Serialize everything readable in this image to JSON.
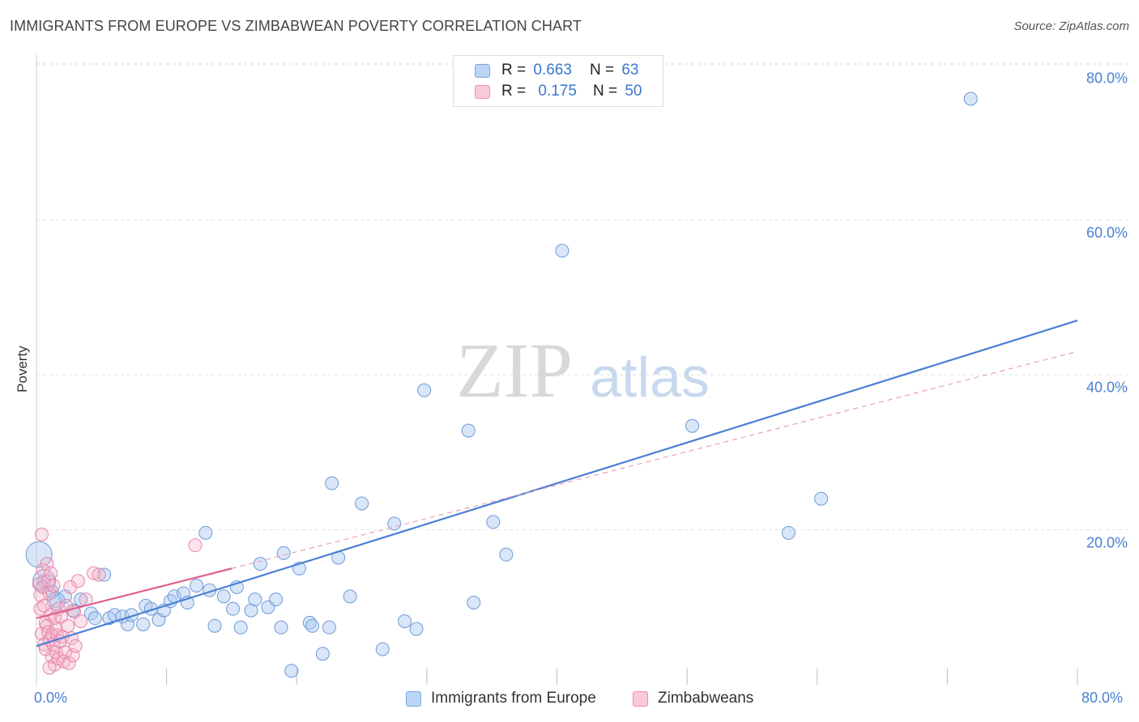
{
  "title": "IMMIGRANTS FROM EUROPE VS ZIMBABWEAN POVERTY CORRELATION CHART",
  "source": "Source: ZipAtlas.com",
  "watermark": {
    "zip": "ZIP",
    "atlas": "atlas"
  },
  "legend_top": {
    "r_label": "R =",
    "n_label": "N =",
    "rows": [
      {
        "r": "0.663",
        "n": "63",
        "color": "#a8c8f0"
      },
      {
        "r": "0.175",
        "n": "50",
        "color": "#f4b0c8"
      }
    ]
  },
  "chart_data": {
    "type": "scatter",
    "title": "IMMIGRANTS FROM EUROPE VS ZIMBABWEAN POVERTY CORRELATION CHART",
    "xlabel": "",
    "ylabel": "Poverty",
    "xlim": [
      0,
      80
    ],
    "ylim": [
      -3,
      84
    ],
    "x_tick_labels": [
      "0.0%",
      "80.0%"
    ],
    "y_ticks": [
      20,
      40,
      60,
      80
    ],
    "y_tick_labels": [
      "20.0%",
      "40.0%",
      "60.0%",
      "80.0%"
    ],
    "grid": "horizontal dashed",
    "legend_position": "bottom-center",
    "colors": {
      "europe": "#4a7fd4",
      "zimbabwe": "#e0608e"
    },
    "series": [
      {
        "name": "Immigrants from Europe",
        "R": 0.663,
        "N": 63,
        "trend": {
          "x": [
            0,
            80
          ],
          "y": [
            5.0,
            47.0
          ]
        },
        "points": [
          [
            0.2,
            16.8
          ],
          [
            0.6,
            13.4
          ],
          [
            1.2,
            12.0
          ],
          [
            1.5,
            10.8
          ],
          [
            2.2,
            11.4
          ],
          [
            2.8,
            9.6
          ],
          [
            3.4,
            11.0
          ],
          [
            4.2,
            9.2
          ],
          [
            4.5,
            8.6
          ],
          [
            5.2,
            14.2
          ],
          [
            5.6,
            8.6
          ],
          [
            6.0,
            9.0
          ],
          [
            6.6,
            8.8
          ],
          [
            7.0,
            7.8
          ],
          [
            7.3,
            9.0
          ],
          [
            8.2,
            7.8
          ],
          [
            8.4,
            10.2
          ],
          [
            8.8,
            9.8
          ],
          [
            9.4,
            8.4
          ],
          [
            9.8,
            9.6
          ],
          [
            10.3,
            10.8
          ],
          [
            10.6,
            11.4
          ],
          [
            11.3,
            11.8
          ],
          [
            11.6,
            10.6
          ],
          [
            12.3,
            12.8
          ],
          [
            13.0,
            19.6
          ],
          [
            13.3,
            12.2
          ],
          [
            13.7,
            7.6
          ],
          [
            14.4,
            11.4
          ],
          [
            15.1,
            9.8
          ],
          [
            15.4,
            12.6
          ],
          [
            15.7,
            7.4
          ],
          [
            16.5,
            9.6
          ],
          [
            16.8,
            11.0
          ],
          [
            17.2,
            15.6
          ],
          [
            17.8,
            10.0
          ],
          [
            18.4,
            11.0
          ],
          [
            18.8,
            7.4
          ],
          [
            19.0,
            17.0
          ],
          [
            19.6,
            1.8
          ],
          [
            20.2,
            15.0
          ],
          [
            21.0,
            8.0
          ],
          [
            21.2,
            7.6
          ],
          [
            22.0,
            4.0
          ],
          [
            22.5,
            7.4
          ],
          [
            22.7,
            26.0
          ],
          [
            23.2,
            16.4
          ],
          [
            24.1,
            11.4
          ],
          [
            25.0,
            23.4
          ],
          [
            26.6,
            4.6
          ],
          [
            27.5,
            20.8
          ],
          [
            28.3,
            8.2
          ],
          [
            29.2,
            7.2
          ],
          [
            29.8,
            38.0
          ],
          [
            33.2,
            32.8
          ],
          [
            33.6,
            10.6
          ],
          [
            35.1,
            21.0
          ],
          [
            36.1,
            16.8
          ],
          [
            40.4,
            56.0
          ],
          [
            50.4,
            33.4
          ],
          [
            57.8,
            19.6
          ],
          [
            60.3,
            24.0
          ],
          [
            71.8,
            75.6
          ]
        ]
      },
      {
        "name": "Zimbabweans",
        "R": 0.175,
        "N": 50,
        "trend_solid": {
          "x": [
            0,
            15
          ],
          "y": [
            8.6,
            15.0
          ]
        },
        "trend_dashed": {
          "x": [
            15,
            80
          ],
          "y": [
            15.0,
            43.0
          ]
        },
        "points": [
          [
            0.2,
            13.0
          ],
          [
            0.3,
            11.6
          ],
          [
            0.3,
            9.8
          ],
          [
            0.4,
            19.4
          ],
          [
            0.4,
            6.6
          ],
          [
            0.5,
            14.8
          ],
          [
            0.5,
            12.6
          ],
          [
            0.6,
            10.2
          ],
          [
            0.6,
            5.2
          ],
          [
            0.7,
            8.0
          ],
          [
            0.7,
            4.6
          ],
          [
            0.8,
            15.6
          ],
          [
            0.8,
            7.6
          ],
          [
            0.9,
            13.4
          ],
          [
            0.9,
            6.8
          ],
          [
            1.0,
            11.8
          ],
          [
            1.0,
            5.8
          ],
          [
            1.1,
            14.4
          ],
          [
            1.1,
            9.0
          ],
          [
            1.2,
            6.4
          ],
          [
            1.2,
            3.6
          ],
          [
            1.3,
            12.8
          ],
          [
            1.3,
            5.2
          ],
          [
            1.4,
            8.6
          ],
          [
            1.4,
            2.6
          ],
          [
            1.5,
            7.2
          ],
          [
            1.5,
            4.2
          ],
          [
            1.6,
            6.4
          ],
          [
            1.7,
            9.8
          ],
          [
            1.7,
            3.4
          ],
          [
            1.8,
            5.6
          ],
          [
            1.9,
            8.8
          ],
          [
            2.0,
            6.2
          ],
          [
            2.1,
            3.0
          ],
          [
            2.2,
            4.2
          ],
          [
            2.3,
            10.2
          ],
          [
            2.4,
            7.6
          ],
          [
            2.5,
            2.8
          ],
          [
            2.6,
            12.6
          ],
          [
            2.7,
            6.0
          ],
          [
            2.8,
            3.8
          ],
          [
            2.9,
            9.4
          ],
          [
            3.0,
            5.0
          ],
          [
            3.2,
            13.4
          ],
          [
            3.4,
            8.2
          ],
          [
            3.8,
            11.0
          ],
          [
            4.4,
            14.4
          ],
          [
            4.8,
            14.2
          ],
          [
            12.2,
            18.0
          ],
          [
            1.0,
            2.2
          ]
        ]
      }
    ]
  },
  "legend_bottom": [
    {
      "label": "Immigrants from Europe",
      "color": "#a8c8f0"
    },
    {
      "label": "Zimbabweans",
      "color": "#f4b0c8"
    }
  ]
}
